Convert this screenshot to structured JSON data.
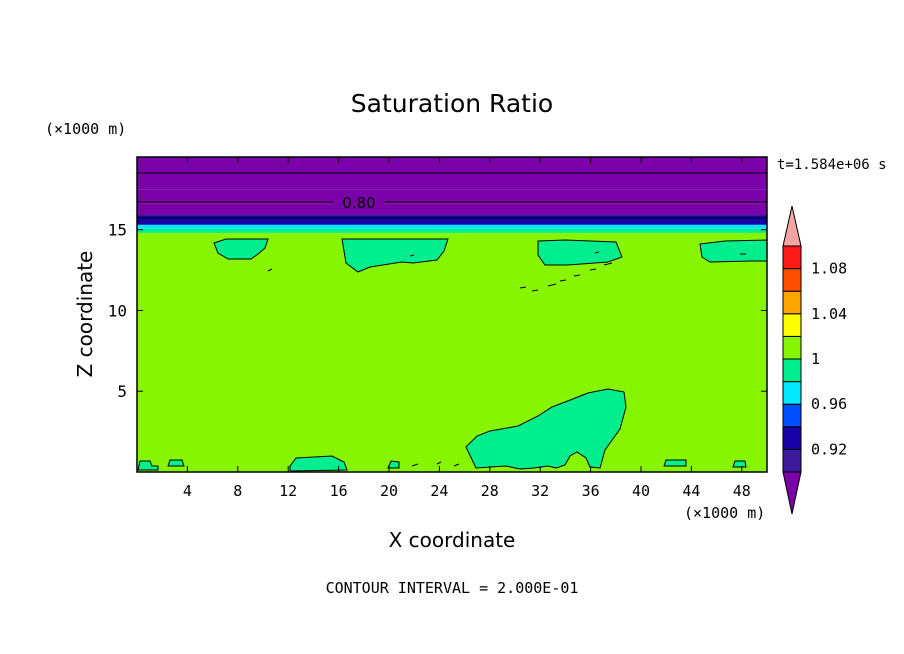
{
  "chart_data": {
    "type": "heatmap",
    "title": "Saturation Ratio",
    "xlabel": "X coordinate",
    "ylabel": "Z coordinate",
    "x_unit": "(×1000 m)",
    "y_unit": "(×1000 m)",
    "time_label": "t=1.584e+06 s",
    "contour_interval_label": "CONTOUR INTERVAL = 2.000E-01",
    "contour_label": "0.80",
    "xlim": [
      0,
      50
    ],
    "ylim": [
      0,
      19.5
    ],
    "x_ticks": [
      "4",
      "8",
      "12",
      "16",
      "20",
      "24",
      "28",
      "32",
      "36",
      "40",
      "44",
      "48"
    ],
    "y_ticks": [
      "5",
      "10",
      "15"
    ],
    "colorbar": {
      "levels": [
        0.9,
        0.92,
        0.94,
        0.96,
        0.98,
        1.0,
        1.02,
        1.04,
        1.06,
        1.08,
        1.1
      ],
      "tick_labels": [
        "0.92",
        "0.96",
        "1",
        "1.04",
        "1.08"
      ],
      "colors": [
        "#7a00a8",
        "#3d1a9e",
        "#1a00a8",
        "#0050ff",
        "#00e8ff",
        "#00ee8e",
        "#88f500",
        "#ffff00",
        "#ffa500",
        "#ff5000",
        "#ff1a1a",
        "#f5a4a4"
      ]
    },
    "layers": [
      {
        "range": [
          17.5,
          19.5
        ],
        "color": "#7a00a8"
      },
      {
        "range": [
          16.6,
          17.5
        ],
        "color": "#7a00a8"
      },
      {
        "range": [
          15.9,
          16.6
        ],
        "color": "#7a00a8"
      },
      {
        "range": [
          15.3,
          15.9
        ],
        "color": "#1a00a8"
      },
      {
        "range": [
          15.05,
          15.3
        ],
        "color": "#00e8ff"
      },
      {
        "range": [
          14.8,
          15.05
        ],
        "color": "#00ee8e"
      },
      {
        "range": [
          0,
          14.8
        ],
        "color": "#88f500"
      }
    ]
  }
}
